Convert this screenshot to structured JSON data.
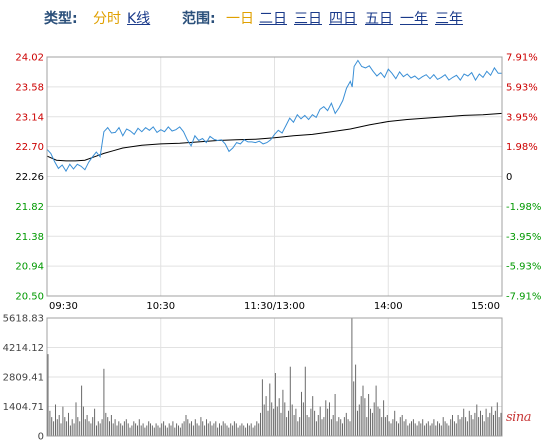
{
  "toolbar": {
    "type_label": "类型:",
    "type_options": [
      {
        "label": "分时",
        "active": true
      },
      {
        "label": "K线",
        "active": false
      }
    ],
    "range_label": "范围:",
    "range_options": [
      {
        "label": "一日",
        "active": true
      },
      {
        "label": "二日",
        "active": false
      },
      {
        "label": "三日",
        "active": false
      },
      {
        "label": "四日",
        "active": false
      },
      {
        "label": "五日",
        "active": false
      },
      {
        "label": "一年",
        "active": false
      },
      {
        "label": "三年",
        "active": false
      }
    ]
  },
  "watermark": "sina",
  "colors": {
    "price_line": "#3a8fd6",
    "avg_line": "#000000",
    "up": "#cc0000",
    "down": "#009900",
    "neutral": "#000000",
    "volume_bar": "#6a6a6a"
  },
  "chart_data": [
    {
      "type": "line",
      "name": "intraday-price",
      "ylim": [
        20.5,
        24.02
      ],
      "y_ticks": [
        "24.02",
        "23.58",
        "23.14",
        "22.70",
        "22.26",
        "21.82",
        "21.38",
        "20.94",
        "20.50"
      ],
      "right_ticks": [
        "7.91%",
        "5.93%",
        "3.95%",
        "1.98%",
        "0",
        "-1.98%",
        "-3.95%",
        "-5.93%",
        "-7.91%"
      ],
      "x_ticks": [
        "09:30",
        "10:30",
        "11:30/13:00",
        "14:00",
        "15:00"
      ],
      "x_range": [
        0,
        240
      ],
      "grid": true,
      "series": [
        {
          "role": "price",
          "x": [
            0,
            2,
            4,
            6,
            8,
            10,
            12,
            14,
            16,
            18,
            20,
            22,
            24,
            26,
            28,
            30,
            32,
            34,
            36,
            38,
            40,
            42,
            44,
            46,
            48,
            50,
            52,
            54,
            56,
            58,
            60,
            62,
            64,
            66,
            68,
            70,
            72,
            74,
            76,
            78,
            80,
            82,
            84,
            86,
            88,
            90,
            92,
            94,
            96,
            98,
            100,
            102,
            104,
            106,
            108,
            110,
            112,
            114,
            116,
            118,
            120,
            122,
            124,
            126,
            128,
            130,
            132,
            134,
            136,
            138,
            140,
            142,
            144,
            146,
            148,
            150,
            152,
            154,
            156,
            158,
            160,
            161,
            162,
            164,
            166,
            168,
            170,
            172,
            174,
            176,
            178,
            180,
            182,
            184,
            186,
            188,
            190,
            192,
            194,
            196,
            198,
            200,
            202,
            204,
            206,
            208,
            210,
            212,
            214,
            216,
            218,
            220,
            222,
            224,
            226,
            228,
            230,
            232,
            234,
            236,
            238,
            240
          ],
          "y": [
            22.66,
            22.6,
            22.48,
            22.38,
            22.43,
            22.34,
            22.44,
            22.37,
            22.44,
            22.41,
            22.36,
            22.47,
            22.55,
            22.62,
            22.55,
            22.92,
            22.98,
            22.9,
            22.91,
            22.98,
            22.86,
            22.96,
            22.93,
            22.88,
            22.97,
            22.92,
            22.98,
            22.94,
            22.99,
            22.91,
            22.95,
            22.92,
            22.99,
            22.93,
            22.95,
            22.99,
            22.92,
            22.8,
            22.71,
            22.86,
            22.79,
            22.82,
            22.76,
            22.85,
            22.81,
            22.79,
            22.8,
            22.74,
            22.63,
            22.68,
            22.76,
            22.74,
            22.8,
            22.77,
            22.77,
            22.76,
            22.78,
            22.74,
            22.76,
            22.8,
            22.88,
            22.94,
            22.9,
            23.01,
            23.12,
            23.06,
            23.17,
            23.11,
            23.16,
            23.1,
            23.17,
            23.13,
            23.25,
            23.29,
            23.23,
            23.34,
            23.19,
            23.27,
            23.38,
            23.56,
            23.66,
            23.58,
            23.88,
            23.97,
            23.88,
            23.86,
            23.89,
            23.81,
            23.74,
            23.79,
            23.72,
            23.84,
            23.78,
            23.7,
            23.8,
            23.73,
            23.77,
            23.71,
            23.74,
            23.69,
            23.73,
            23.76,
            23.7,
            23.76,
            23.69,
            23.72,
            23.76,
            23.68,
            23.72,
            23.75,
            23.68,
            23.77,
            23.74,
            23.79,
            23.68,
            23.77,
            23.72,
            23.81,
            23.75,
            23.86,
            23.78,
            23.78
          ]
        },
        {
          "role": "average",
          "x": [
            0,
            5,
            10,
            15,
            20,
            25,
            30,
            35,
            40,
            50,
            60,
            70,
            80,
            90,
            100,
            110,
            120,
            130,
            140,
            150,
            160,
            170,
            180,
            190,
            200,
            210,
            220,
            230,
            240
          ],
          "y": [
            22.56,
            22.5,
            22.49,
            22.49,
            22.5,
            22.55,
            22.6,
            22.64,
            22.68,
            22.72,
            22.74,
            22.75,
            22.77,
            22.79,
            22.8,
            22.81,
            22.83,
            22.86,
            22.88,
            22.92,
            22.96,
            23.02,
            23.07,
            23.1,
            23.12,
            23.14,
            23.16,
            23.17,
            23.19
          ]
        }
      ]
    },
    {
      "type": "bar",
      "name": "intraday-volume",
      "ylim": [
        0,
        5618.83
      ],
      "y_ticks": [
        "5618.83",
        "4214.12",
        "2809.41",
        "1404.71",
        "0"
      ],
      "x_range": [
        0,
        240
      ],
      "values": [
        3900,
        1200,
        900,
        700,
        1500,
        800,
        1000,
        600,
        1400,
        900,
        700,
        1100,
        500,
        800,
        600,
        1600,
        900,
        700,
        2400,
        1400,
        800,
        1000,
        700,
        600,
        900,
        1300,
        500,
        700,
        600,
        800,
        3200,
        1100,
        900,
        700,
        1000,
        600,
        800,
        500,
        700,
        600,
        500,
        700,
        800,
        600,
        400,
        500,
        700,
        600,
        500,
        800,
        500,
        600,
        400,
        500,
        700,
        600,
        500,
        400,
        600,
        500,
        400,
        600,
        700,
        500,
        400,
        600,
        500,
        700,
        400,
        600,
        500,
        400,
        600,
        700,
        1000,
        800,
        600,
        700,
        500,
        800,
        600,
        500,
        900,
        700,
        500,
        800,
        600,
        700,
        500,
        600,
        700,
        400,
        600,
        500,
        700,
        600,
        500,
        400,
        600,
        500,
        700,
        600,
        400,
        500,
        600,
        500,
        400,
        600,
        500,
        600,
        400,
        500,
        700,
        600,
        1100,
        2700,
        1500,
        1900,
        1200,
        2500,
        1600,
        1300,
        3000,
        1400,
        1800,
        1100,
        2200,
        1600,
        900,
        1200,
        3300,
        1500,
        1000,
        1300,
        700,
        900,
        2100,
        1600,
        3300,
        1000,
        900,
        1300,
        1900,
        1200,
        700,
        1000,
        1400,
        800,
        900,
        1700,
        1300,
        1600,
        800,
        1000,
        2000,
        700,
        900,
        800,
        600,
        900,
        1100,
        800,
        700,
        5600,
        2600,
        3400,
        1200,
        1500,
        1900,
        2400,
        1800,
        900,
        2000,
        1300,
        1100,
        1600,
        2400,
        1400,
        1300,
        900,
        1700,
        900,
        1000,
        700,
        600,
        800,
        1200,
        700,
        600,
        900,
        1000,
        700,
        800,
        500,
        600,
        700,
        800,
        600,
        500,
        700,
        600,
        800,
        500,
        600,
        700,
        500,
        600,
        800,
        500,
        700,
        600,
        500,
        900,
        700,
        600,
        500,
        800,
        1000,
        700,
        600,
        1000,
        800,
        900,
        1300,
        900,
        700,
        1200,
        1000,
        800,
        1100,
        1500,
        900,
        1200,
        1000,
        700,
        1300,
        900,
        1100,
        1400,
        1000,
        1200,
        1600,
        900,
        1100
      ]
    }
  ]
}
